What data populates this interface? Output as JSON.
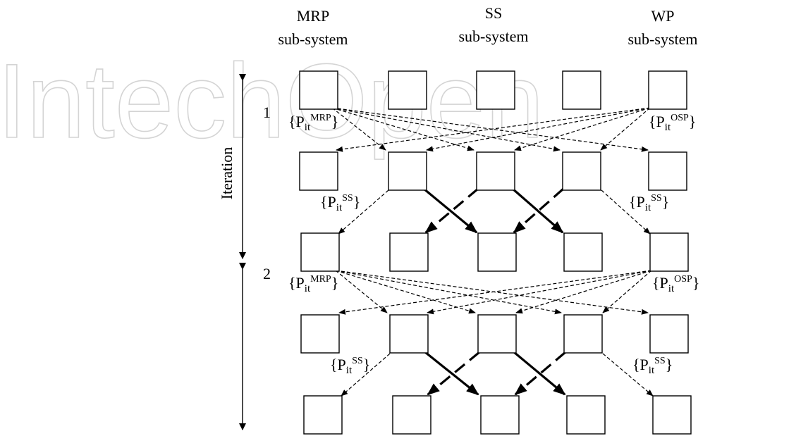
{
  "watermark": "IntechOpen",
  "headers": {
    "mrp": [
      "MRP",
      "sub-system"
    ],
    "ss": [
      "SS",
      "sub-system"
    ],
    "wp": [
      "WP",
      "sub-system"
    ]
  },
  "iteration": {
    "label": "Iteration",
    "marks": [
      "1",
      "2"
    ]
  },
  "labels": {
    "p_mrp_1": {
      "base": "{P",
      "sub": "it",
      "sup": "MRP",
      "close": "}"
    },
    "p_osp_1": {
      "base": "{P",
      "sub": "it",
      "sup": "OSP",
      "close": "}"
    },
    "p_ss_1a": {
      "base": "{P",
      "sub": "it",
      "sup": "SS",
      "close": "}"
    },
    "p_ss_1b": {
      "base": "{P",
      "sub": "it",
      "sup": "SS",
      "close": "}"
    },
    "p_mrp_2": {
      "base": "{P",
      "sub": "it",
      "sup": "MRP",
      "close": "}"
    },
    "p_osp_2": {
      "base": "{P",
      "sub": "it",
      "sup": "OSP",
      "close": "}"
    },
    "p_ss_2a": {
      "base": "{P",
      "sub": "it",
      "sup": "SS",
      "close": "}"
    },
    "p_ss_2b": {
      "base": "{P",
      "sub": "it",
      "sup": "SS",
      "close": "}"
    }
  }
}
